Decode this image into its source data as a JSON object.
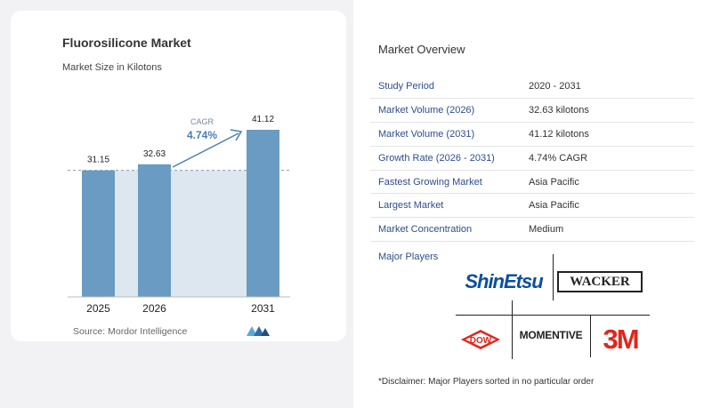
{
  "chart": {
    "title": "Fluorosilicone Market",
    "subtitle": "Market Size in Kilotons",
    "source": "Source:  Mordor Intelligence",
    "cagr_label": "CAGR",
    "cagr_value": "4.74%"
  },
  "chart_data": {
    "type": "bar",
    "title": "Fluorosilicone Market",
    "subtitle": "Market Size in Kilotons",
    "categories": [
      "2025",
      "2026",
      "2031"
    ],
    "values": [
      31.15,
      32.63,
      41.12
    ],
    "value_labels": [
      "31.15",
      "32.63",
      "41.12"
    ],
    "ylim": [
      0,
      41.12
    ],
    "grid": false,
    "annotation": {
      "label": "CAGR",
      "value": "4.74%"
    },
    "colors": {
      "bar": "#6a9bc2",
      "band": "#dde7f0"
    }
  },
  "overview": {
    "title": "Market Overview",
    "rows": [
      {
        "label": "Study Period",
        "value": "2020 - 2031"
      },
      {
        "label": "Market Volume (2026)",
        "value": "32.63 kilotons"
      },
      {
        "label": "Market Volume (2031)",
        "value": "41.12 kilotons"
      },
      {
        "label": "Growth Rate (2026 - 2031)",
        "value": "4.74% CAGR"
      },
      {
        "label": "Fastest Growing Market",
        "value": "Asia Pacific"
      },
      {
        "label": "Largest Market",
        "value": "Asia Pacific"
      },
      {
        "label": "Market Concentration",
        "value": "Medium"
      }
    ],
    "players_title": "Major Players",
    "players": [
      "ShinEtsu",
      "WACKER",
      "DOW",
      "MOMENTIVE",
      "3M"
    ],
    "disclaimer": "*Disclaimer: Major Players sorted in no particular order"
  },
  "colors": {
    "label_blue": "#2d4e8c",
    "cagr_blue": "#4a7fb5",
    "logo_red": "#e1261c",
    "shin_blue": "#0a4fa0"
  }
}
